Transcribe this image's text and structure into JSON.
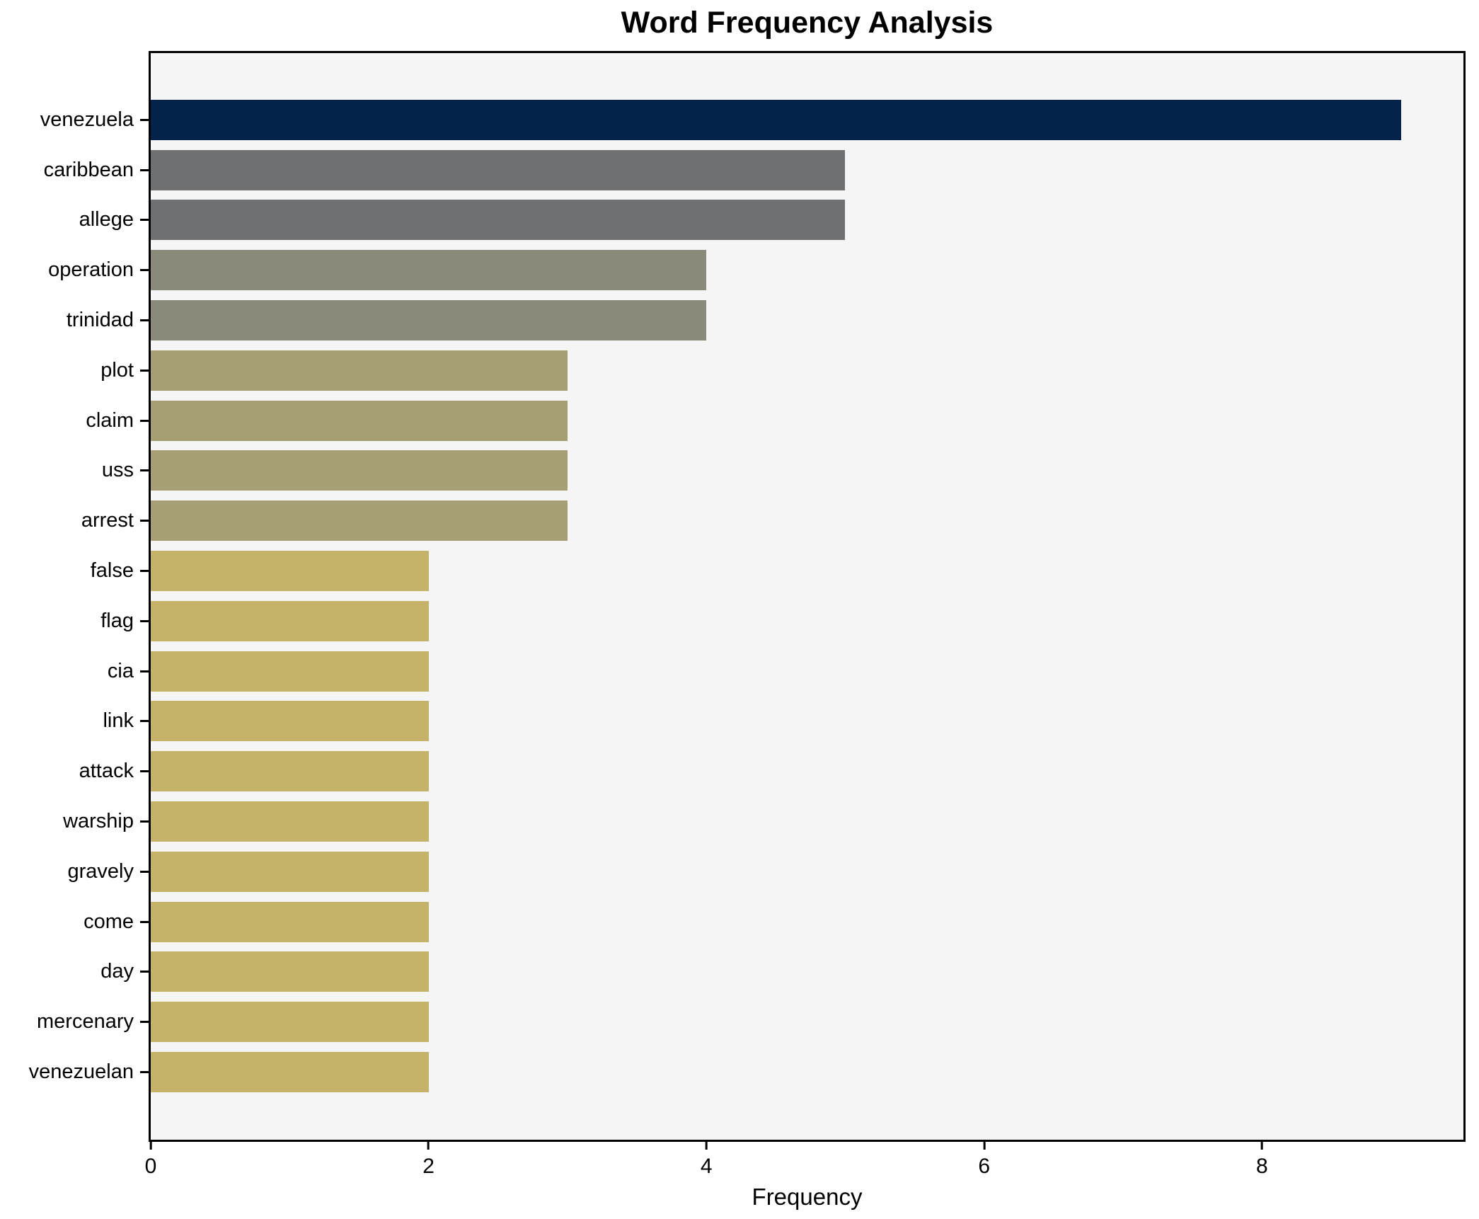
{
  "title": "Word Frequency Analysis",
  "chart_data": {
    "type": "bar",
    "orientation": "horizontal",
    "title": "Word Frequency Analysis",
    "xlabel": "Frequency",
    "ylabel": "",
    "categories": [
      "venezuela",
      "caribbean",
      "allege",
      "operation",
      "trinidad",
      "plot",
      "claim",
      "uss",
      "arrest",
      "false",
      "flag",
      "cia",
      "link",
      "attack",
      "warship",
      "gravely",
      "come",
      "day",
      "mercenary",
      "venezuelan"
    ],
    "values": [
      9,
      5,
      5,
      4,
      4,
      3,
      3,
      3,
      3,
      2,
      2,
      2,
      2,
      2,
      2,
      2,
      2,
      2,
      2,
      2
    ],
    "bar_colors": [
      "#03234B",
      "#6F7072",
      "#6F7072",
      "#8B8979",
      "#8B8979",
      "#A69F73",
      "#A69F73",
      "#A69F73",
      "#A69F73",
      "#C4B368",
      "#C4B368",
      "#C4B368",
      "#C4B368",
      "#C4B368",
      "#C4B368",
      "#C4B368",
      "#C4B368",
      "#C4B368",
      "#C4B368",
      "#C4B368"
    ],
    "xticks": [
      0,
      2,
      4,
      6,
      8
    ],
    "xlim": [
      0,
      9.45
    ],
    "grid": false,
    "legend": null,
    "plot_background": "#f5f5f6",
    "frame_color": "#000000"
  }
}
